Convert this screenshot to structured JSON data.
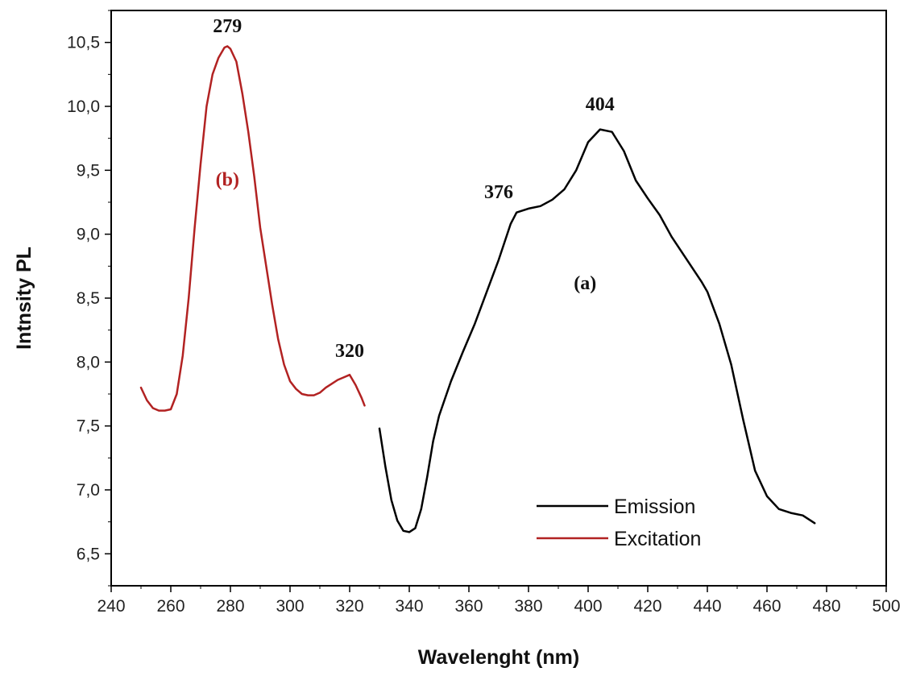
{
  "chart_data": {
    "type": "line",
    "xlabel": "Wavelenght (nm)",
    "ylabel": "Intnsity PL",
    "xlim": [
      240,
      500
    ],
    "ylim": [
      6.25,
      10.75
    ],
    "x_ticks": [
      240,
      260,
      280,
      300,
      320,
      340,
      360,
      380,
      400,
      420,
      440,
      460,
      480,
      500
    ],
    "x_tick_labels": [
      "240",
      "260",
      "280",
      "300",
      "320",
      "340",
      "360",
      "380",
      "400",
      "420",
      "440",
      "460",
      "480",
      "500"
    ],
    "y_ticks": [
      6.5,
      7.0,
      7.5,
      8.0,
      8.5,
      9.0,
      9.5,
      10.0,
      10.5
    ],
    "y_tick_labels": [
      "6,5",
      "7,0",
      "7,5",
      "8,0",
      "8,5",
      "9,0",
      "9,5",
      "10,0",
      "10,5"
    ],
    "grid": false,
    "legend_position": "bottom-right",
    "series": [
      {
        "name": "Emission",
        "color": "#000000",
        "points": [
          [
            330,
            7.48
          ],
          [
            332,
            7.18
          ],
          [
            334,
            6.92
          ],
          [
            336,
            6.76
          ],
          [
            338,
            6.68
          ],
          [
            340,
            6.67
          ],
          [
            342,
            6.7
          ],
          [
            344,
            6.85
          ],
          [
            346,
            7.1
          ],
          [
            348,
            7.38
          ],
          [
            350,
            7.58
          ],
          [
            354,
            7.85
          ],
          [
            358,
            8.08
          ],
          [
            362,
            8.3
          ],
          [
            366,
            8.55
          ],
          [
            370,
            8.8
          ],
          [
            374,
            9.08
          ],
          [
            376,
            9.17
          ],
          [
            380,
            9.2
          ],
          [
            384,
            9.22
          ],
          [
            388,
            9.27
          ],
          [
            392,
            9.35
          ],
          [
            396,
            9.5
          ],
          [
            400,
            9.72
          ],
          [
            404,
            9.82
          ],
          [
            408,
            9.8
          ],
          [
            412,
            9.65
          ],
          [
            416,
            9.42
          ],
          [
            420,
            9.28
          ],
          [
            424,
            9.15
          ],
          [
            428,
            8.98
          ],
          [
            432,
            8.84
          ],
          [
            436,
            8.7
          ],
          [
            438,
            8.63
          ],
          [
            440,
            8.55
          ],
          [
            444,
            8.3
          ],
          [
            448,
            7.98
          ],
          [
            452,
            7.55
          ],
          [
            456,
            7.15
          ],
          [
            460,
            6.95
          ],
          [
            464,
            6.85
          ],
          [
            468,
            6.82
          ],
          [
            472,
            6.8
          ],
          [
            476,
            6.74
          ]
        ]
      },
      {
        "name": "Excitation",
        "color": "#b22222",
        "points": [
          [
            250,
            7.8
          ],
          [
            252,
            7.7
          ],
          [
            254,
            7.64
          ],
          [
            256,
            7.62
          ],
          [
            258,
            7.62
          ],
          [
            260,
            7.63
          ],
          [
            262,
            7.75
          ],
          [
            264,
            8.05
          ],
          [
            266,
            8.5
          ],
          [
            268,
            9.05
          ],
          [
            270,
            9.55
          ],
          [
            272,
            10.0
          ],
          [
            274,
            10.25
          ],
          [
            276,
            10.38
          ],
          [
            278,
            10.46
          ],
          [
            279,
            10.47
          ],
          [
            280,
            10.45
          ],
          [
            282,
            10.35
          ],
          [
            284,
            10.1
          ],
          [
            286,
            9.8
          ],
          [
            288,
            9.45
          ],
          [
            290,
            9.05
          ],
          [
            292,
            8.75
          ],
          [
            294,
            8.45
          ],
          [
            296,
            8.18
          ],
          [
            298,
            7.98
          ],
          [
            300,
            7.85
          ],
          [
            302,
            7.79
          ],
          [
            304,
            7.75
          ],
          [
            306,
            7.74
          ],
          [
            308,
            7.74
          ],
          [
            310,
            7.76
          ],
          [
            312,
            7.8
          ],
          [
            314,
            7.83
          ],
          [
            316,
            7.86
          ],
          [
            318,
            7.88
          ],
          [
            320,
            7.9
          ],
          [
            322,
            7.82
          ],
          [
            324,
            7.72
          ],
          [
            325,
            7.66
          ]
        ]
      }
    ],
    "annotations": [
      {
        "text": "279",
        "x": 279,
        "y": 10.58,
        "color": "#111111"
      },
      {
        "text": "(b)",
        "x": 279,
        "y": 9.38,
        "color": "#b22222"
      },
      {
        "text": "320",
        "x": 320,
        "y": 8.04,
        "color": "#111111"
      },
      {
        "text": "376",
        "x": 370,
        "y": 9.28,
        "color": "#111111"
      },
      {
        "text": "404",
        "x": 404,
        "y": 9.97,
        "color": "#111111"
      },
      {
        "text": "(a)",
        "x": 399,
        "y": 8.57,
        "color": "#111111"
      }
    ]
  }
}
